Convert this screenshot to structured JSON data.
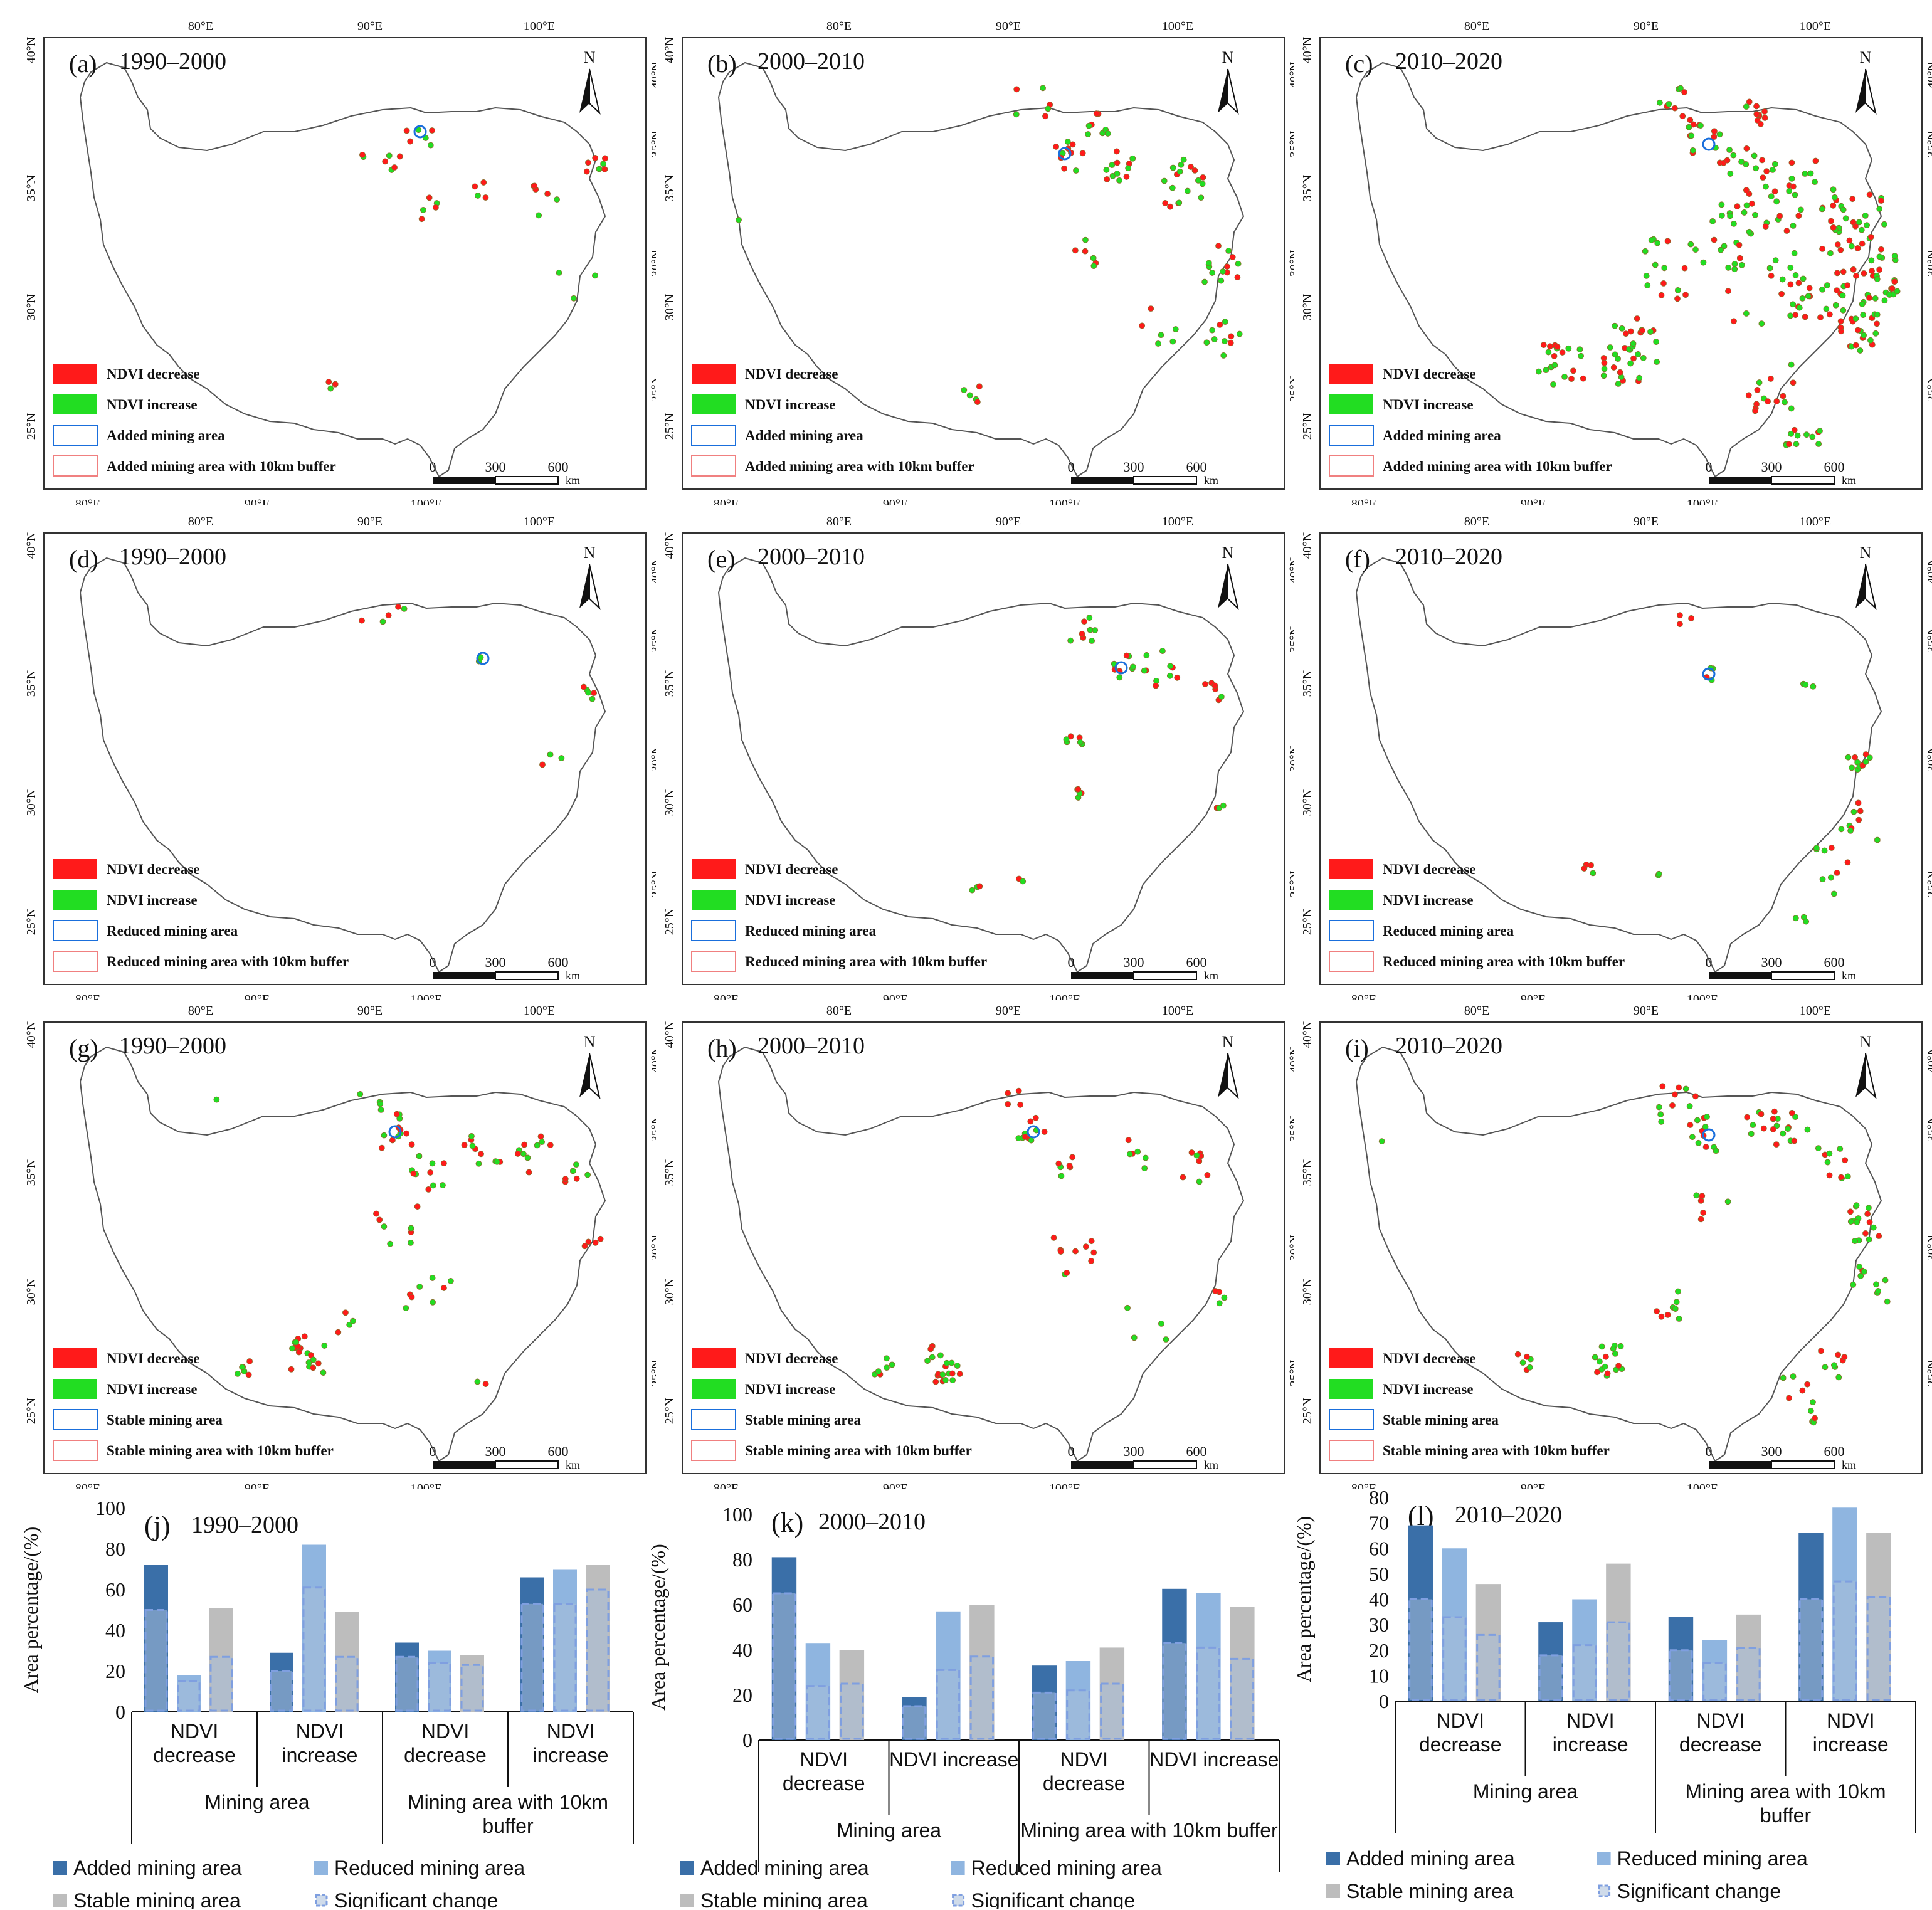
{
  "colors": {
    "ndvi_decrease": "#ff1a1a",
    "ndvi_increase": "#22dd22",
    "mining_outline": "#1a6fdc",
    "buffer_outline": "#f08080",
    "added_bar": "#3a6fa8",
    "reduced_bar": "#8fb5e0",
    "stable_bar": "#bdbdbd",
    "significant_fill": "#a8bdd8",
    "significant_stroke": "#7f9fe0",
    "border": "#555555"
  },
  "icons": {
    "north_arrow": "north-arrow-icon",
    "scale_bar": "scale-bar-icon"
  },
  "map_labels": {
    "lon_ticks": [
      "80°E",
      "90°E",
      "100°E"
    ],
    "lat_ticks": [
      "25°N",
      "30°N",
      "35°N",
      "40°N"
    ],
    "north": "N",
    "scale": [
      "0",
      "300",
      "600"
    ],
    "scale_unit": "km"
  },
  "maps": [
    {
      "letter": "(a)",
      "period": "1990–2000",
      "legend": [
        "NDVI decrease",
        "NDVI increase",
        "Added mining area",
        "Added mining area with 10km buffer"
      ]
    },
    {
      "letter": "(b)",
      "period": "2000–2010",
      "legend": [
        "NDVI decrease",
        "NDVI increase",
        "Added mining area",
        "Added mining area with 10km buffer"
      ]
    },
    {
      "letter": "(c)",
      "period": "2010–2020",
      "legend": [
        "NDVI decrease",
        "NDVI increase",
        "Added mining area",
        "Added mining area with 10km buffer"
      ]
    },
    {
      "letter": "(d)",
      "period": "1990–2000",
      "legend": [
        "NDVI decrease",
        "NDVI increase",
        "Reduced mining area",
        "Reduced mining area with 10km buffer"
      ]
    },
    {
      "letter": "(e)",
      "period": "2000–2010",
      "legend": [
        "NDVI decrease",
        "NDVI increase",
        "Reduced mining area",
        "Reduced mining area with 10km buffer"
      ]
    },
    {
      "letter": "(f)",
      "period": "2010–2020",
      "legend": [
        "NDVI decrease",
        "NDVI increase",
        "Reduced mining area",
        "Reduced mining area with 10km buffer"
      ]
    },
    {
      "letter": "(g)",
      "period": "1990–2000",
      "legend": [
        "NDVI decrease",
        "NDVI increase",
        "Stable mining area",
        "Stable mining area with 10km buffer"
      ]
    },
    {
      "letter": "(h)",
      "period": "2000–2010",
      "legend": [
        "NDVI decrease",
        "NDVI increase",
        "Stable mining area",
        "Stable mining area with 10km buffer"
      ]
    },
    {
      "letter": "(i)",
      "period": "2010–2020",
      "legend": [
        "NDVI decrease",
        "NDVI increase",
        "Stable mining area",
        "Stable mining area with 10km buffer"
      ]
    }
  ],
  "chart_data": [
    {
      "type": "bar",
      "letter": "(j)",
      "title": "1990–2000",
      "ylabel": "Area percentage/(%)",
      "ylim": [
        0,
        100
      ],
      "yticks": [
        0,
        20,
        40,
        60,
        80,
        100
      ],
      "categories": [
        [
          "NDVI",
          "decrease"
        ],
        [
          "NDVI",
          "increase"
        ],
        [
          "NDVI",
          "decrease"
        ],
        [
          "NDVI",
          "increase"
        ]
      ],
      "groups": [
        [
          "Mining area"
        ],
        [
          "Mining area with 10km",
          "buffer"
        ]
      ],
      "series": [
        {
          "name": "Added mining area",
          "values": [
            72,
            29,
            34,
            66
          ],
          "significant": [
            50,
            20,
            27,
            53
          ]
        },
        {
          "name": "Reduced mining area",
          "values": [
            18,
            82,
            30,
            70
          ],
          "significant": [
            15,
            61,
            24,
            53
          ]
        },
        {
          "name": "Stable mining area",
          "values": [
            51,
            49,
            28,
            72
          ],
          "significant": [
            27,
            27,
            23,
            60
          ]
        }
      ],
      "legend": [
        "Added mining area",
        "Reduced mining area",
        "Stable mining area",
        "Significant change"
      ]
    },
    {
      "type": "bar",
      "letter": "(k)",
      "title": "2000–2010",
      "ylabel": "Area percentage/(%)",
      "ylim": [
        0,
        100
      ],
      "yticks": [
        0,
        20,
        40,
        60,
        80,
        100
      ],
      "categories": [
        [
          "NDVI",
          "decrease"
        ],
        [
          "NDVI increase"
        ],
        [
          "NDVI",
          "decrease"
        ],
        [
          "NDVI increase"
        ]
      ],
      "groups": [
        [
          "Mining area"
        ],
        [
          "Mining area with 10km buffer"
        ]
      ],
      "series": [
        {
          "name": "Added mining area",
          "values": [
            81,
            19,
            33,
            67
          ],
          "significant": [
            65,
            15,
            21,
            43
          ]
        },
        {
          "name": "Reduced mining area",
          "values": [
            43,
            57,
            35,
            65
          ],
          "significant": [
            24,
            31,
            22,
            41
          ]
        },
        {
          "name": "Stable mining area",
          "values": [
            40,
            60,
            41,
            59
          ],
          "significant": [
            25,
            37,
            25,
            36
          ]
        }
      ],
      "legend": [
        "Added mining area",
        "Reduced mining area",
        "Stable mining area",
        "Significant change"
      ]
    },
    {
      "type": "bar",
      "letter": "(l)",
      "title": "2010–2020",
      "ylabel": "Area percentage/(%)",
      "ylim": [
        0,
        80
      ],
      "yticks": [
        0,
        10,
        20,
        30,
        40,
        50,
        60,
        70,
        80
      ],
      "categories": [
        [
          "NDVI",
          "decrease"
        ],
        [
          "NDVI",
          "increase"
        ],
        [
          "NDVI",
          "decrease"
        ],
        [
          "NDVI",
          "increase"
        ]
      ],
      "groups": [
        [
          "Mining area"
        ],
        [
          "Mining area with 10km",
          "buffer"
        ]
      ],
      "series": [
        {
          "name": "Added mining area",
          "values": [
            69,
            31,
            33,
            66
          ],
          "significant": [
            40,
            18,
            20,
            40
          ]
        },
        {
          "name": "Reduced mining area",
          "values": [
            60,
            40,
            24,
            76
          ],
          "significant": [
            33,
            22,
            15,
            47
          ]
        },
        {
          "name": "Stable mining area",
          "values": [
            46,
            54,
            34,
            66
          ],
          "significant": [
            26,
            31,
            21,
            41
          ]
        }
      ],
      "legend": [
        "Added mining area",
        "Reduced mining area",
        "Stable mining area",
        "Significant change"
      ]
    }
  ]
}
